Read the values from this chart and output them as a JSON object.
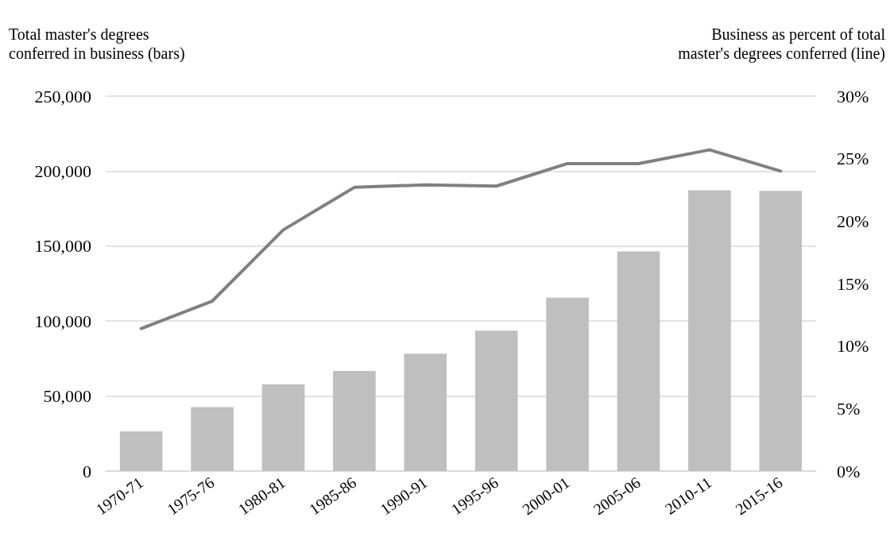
{
  "chart_data": {
    "type": "bar",
    "ylabel": "Total master's degrees\nconferred in business (bars)",
    "y2label": "Business as percent of total\nmaster's degrees conferred (line)",
    "categories": [
      "1970-71",
      "1975-76",
      "1980-81",
      "1985-86",
      "1990-91",
      "1995-96",
      "2000-01",
      "2005-06",
      "2010-11",
      "2015-16"
    ],
    "series": [
      {
        "color": "#bfbfbf",
        "values": [
          26500,
          42600,
          57900,
          66700,
          78300,
          93600,
          115600,
          146400,
          187200,
          186800
        ]
      },
      {
        "type": "line",
        "axis": "y2",
        "color": "#808080",
        "marker": "none",
        "line_style": "solid",
        "values": [
          11.4,
          13.6,
          19.3,
          22.7,
          22.9,
          22.8,
          24.6,
          24.6,
          25.7,
          24.0
        ]
      }
    ],
    "ylim": [
      0,
      250000
    ],
    "yticks": [
      {
        "value": 0,
        "label": "0"
      },
      {
        "value": 50000,
        "label": "50,000"
      },
      {
        "value": 100000,
        "label": "100,000"
      },
      {
        "value": 150000,
        "label": "150,000"
      },
      {
        "value": 200000,
        "label": "200,000"
      },
      {
        "value": 250000,
        "label": "250,000"
      }
    ],
    "y2lim": [
      0,
      30
    ],
    "y2ticks": [
      {
        "value": 0,
        "label": "0%"
      },
      {
        "value": 5,
        "label": "5%"
      },
      {
        "value": 10,
        "label": "10%"
      },
      {
        "value": 15,
        "label": "15%"
      },
      {
        "value": 20,
        "label": "20%"
      },
      {
        "value": 25,
        "label": "25%"
      },
      {
        "value": 30,
        "label": "30%"
      }
    ],
    "grid": "y"
  }
}
